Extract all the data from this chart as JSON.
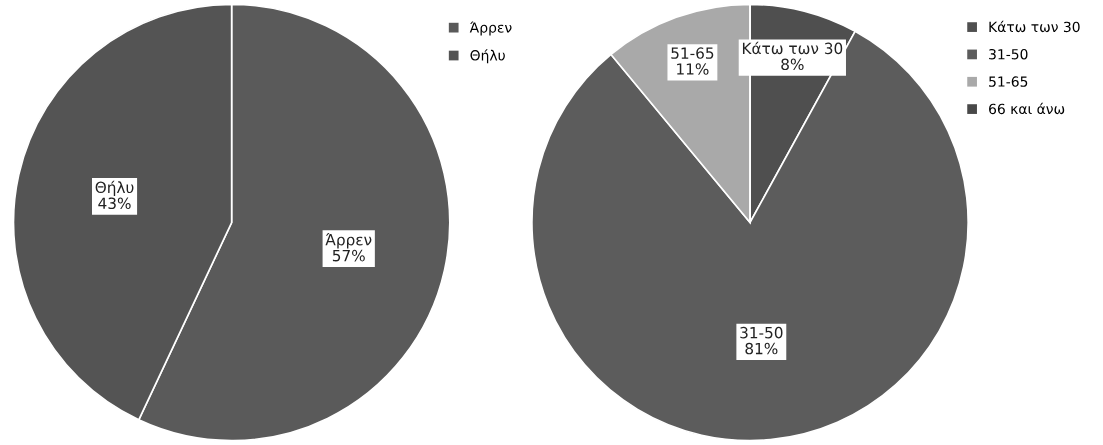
{
  "chart_data": [
    {
      "type": "pie",
      "categories": [
        "Άρρεν",
        "Θήλυ"
      ],
      "values": [
        57,
        43
      ],
      "colors": [
        "#5a5a5a",
        "#545454"
      ],
      "value_labels": [
        "Άρρεν\n57%",
        "Θήλυ\n43%"
      ],
      "legend": "top right"
    },
    {
      "type": "pie",
      "categories": [
        "Κάτω των 30",
        "31-50",
        "51-65",
        "66 και άνω"
      ],
      "values": [
        8,
        81,
        11,
        0
      ],
      "colors": [
        "#4f4f4f",
        "#5c5c5c",
        "#a9a9a9",
        "#484848"
      ],
      "value_labels": [
        "Κάτω των 30\n8%",
        "31-50\n81%",
        "51-65\n11%",
        null
      ],
      "legend": "top right"
    }
  ]
}
